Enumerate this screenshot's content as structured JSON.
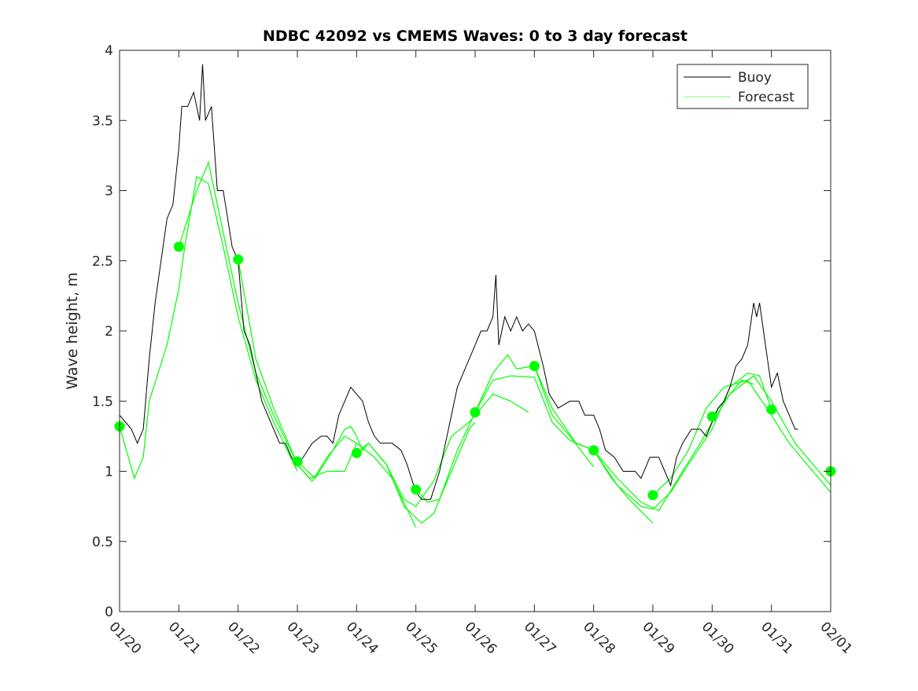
{
  "chart_data": {
    "type": "line",
    "title": "NDBC 42092 vs CMEMS Waves: 0 to 3 day forecast",
    "xlabel": "",
    "ylabel": "Wave height, m",
    "xlim": [
      0,
      12
    ],
    "ylim": [
      0,
      4
    ],
    "x_unit": "days since 01/20",
    "x_tick_labels": [
      "01/20",
      "01/21",
      "01/22",
      "01/23",
      "01/24",
      "01/25",
      "01/26",
      "01/27",
      "01/28",
      "01/29",
      "01/30",
      "01/31",
      "02/01"
    ],
    "y_ticks": [
      0,
      0.5,
      1,
      1.5,
      2,
      2.5,
      3,
      3.5,
      4
    ],
    "y_tick_labels": [
      "0",
      "0.5",
      "1",
      "1.5",
      "2",
      "2.5",
      "3",
      "3.5",
      "4"
    ],
    "grid": false,
    "legend": {
      "placement": "top-right",
      "entries": [
        "Buoy",
        "Forecast"
      ]
    },
    "colors": {
      "buoy": "#000000",
      "forecast": "#00ff00"
    },
    "buoy": [
      [
        0,
        1.4
      ],
      [
        0.1,
        1.35
      ],
      [
        0.2,
        1.3
      ],
      [
        0.3,
        1.2
      ],
      [
        0.4,
        1.3
      ],
      [
        0.5,
        1.8
      ],
      [
        0.6,
        2.2
      ],
      [
        0.7,
        2.5
      ],
      [
        0.8,
        2.8
      ],
      [
        0.9,
        2.9
      ],
      [
        1.0,
        3.3
      ],
      [
        1.05,
        3.6
      ],
      [
        1.15,
        3.6
      ],
      [
        1.25,
        3.7
      ],
      [
        1.35,
        3.5
      ],
      [
        1.4,
        3.9
      ],
      [
        1.45,
        3.5
      ],
      [
        1.55,
        3.6
      ],
      [
        1.65,
        3.0
      ],
      [
        1.75,
        3.0
      ],
      [
        1.9,
        2.6
      ],
      [
        2.0,
        2.5
      ],
      [
        2.1,
        2.0
      ],
      [
        2.2,
        1.9
      ],
      [
        2.3,
        1.7
      ],
      [
        2.4,
        1.5
      ],
      [
        2.5,
        1.4
      ],
      [
        2.6,
        1.3
      ],
      [
        2.7,
        1.2
      ],
      [
        2.8,
        1.2
      ],
      [
        2.9,
        1.1
      ],
      [
        3.0,
        1.05
      ],
      [
        3.1,
        1.1
      ],
      [
        3.25,
        1.2
      ],
      [
        3.4,
        1.25
      ],
      [
        3.5,
        1.25
      ],
      [
        3.6,
        1.2
      ],
      [
        3.7,
        1.4
      ],
      [
        3.8,
        1.5
      ],
      [
        3.9,
        1.6
      ],
      [
        4.0,
        1.55
      ],
      [
        4.1,
        1.5
      ],
      [
        4.2,
        1.35
      ],
      [
        4.3,
        1.25
      ],
      [
        4.4,
        1.2
      ],
      [
        4.6,
        1.2
      ],
      [
        4.75,
        1.15
      ],
      [
        4.85,
        1.05
      ],
      [
        5.0,
        0.85
      ],
      [
        5.1,
        0.8
      ],
      [
        5.25,
        0.8
      ],
      [
        5.4,
        1.0
      ],
      [
        5.5,
        1.2
      ],
      [
        5.6,
        1.4
      ],
      [
        5.7,
        1.6
      ],
      [
        5.8,
        1.7
      ],
      [
        5.9,
        1.8
      ],
      [
        6.0,
        1.9
      ],
      [
        6.1,
        2.0
      ],
      [
        6.2,
        2.0
      ],
      [
        6.3,
        2.1
      ],
      [
        6.35,
        2.4
      ],
      [
        6.4,
        1.9
      ],
      [
        6.5,
        2.1
      ],
      [
        6.6,
        2.0
      ],
      [
        6.7,
        2.1
      ],
      [
        6.8,
        2.0
      ],
      [
        6.9,
        2.05
      ],
      [
        7.0,
        2.0
      ],
      [
        7.15,
        1.75
      ],
      [
        7.25,
        1.55
      ],
      [
        7.4,
        1.45
      ],
      [
        7.6,
        1.5
      ],
      [
        7.75,
        1.5
      ],
      [
        7.85,
        1.4
      ],
      [
        8.0,
        1.4
      ],
      [
        8.1,
        1.3
      ],
      [
        8.2,
        1.15
      ],
      [
        8.35,
        1.1
      ],
      [
        8.5,
        1.0
      ],
      [
        8.7,
        1.0
      ],
      [
        8.8,
        0.95
      ],
      [
        8.95,
        1.1
      ],
      [
        9.1,
        1.1
      ],
      [
        9.2,
        1.0
      ],
      [
        9.3,
        0.9
      ],
      [
        9.4,
        1.1
      ],
      [
        9.5,
        1.2
      ],
      [
        9.65,
        1.3
      ],
      [
        9.8,
        1.3
      ],
      [
        9.9,
        1.25
      ],
      [
        10.0,
        1.35
      ],
      [
        10.1,
        1.45
      ],
      [
        10.2,
        1.5
      ],
      [
        10.3,
        1.6
      ],
      [
        10.4,
        1.75
      ],
      [
        10.5,
        1.8
      ],
      [
        10.6,
        1.9
      ],
      [
        10.7,
        2.2
      ],
      [
        10.75,
        2.1
      ],
      [
        10.8,
        2.2
      ],
      [
        10.9,
        1.9
      ],
      [
        11.0,
        1.6
      ],
      [
        11.1,
        1.7
      ],
      [
        11.2,
        1.5
      ],
      [
        11.3,
        1.4
      ],
      [
        11.4,
        1.3
      ],
      [
        11.45,
        1.3
      ]
    ],
    "forecasts": [
      [
        [
          0,
          1.32
        ],
        [
          0.25,
          0.95
        ],
        [
          0.4,
          1.1
        ],
        [
          0.5,
          1.5
        ],
        [
          0.8,
          1.9
        ],
        [
          1.0,
          2.3
        ],
        [
          1.1,
          2.6
        ],
        [
          1.3,
          3.1
        ],
        [
          1.5,
          3.05
        ],
        [
          1.75,
          2.6
        ],
        [
          2.0,
          2.1
        ],
        [
          2.3,
          1.65
        ],
        [
          2.6,
          1.35
        ],
        [
          3.0,
          1.0
        ]
      ],
      [
        [
          1.0,
          2.6
        ],
        [
          1.3,
          3.0
        ],
        [
          1.5,
          3.2
        ],
        [
          1.7,
          2.8
        ],
        [
          2.0,
          2.2
        ],
        [
          2.3,
          1.7
        ],
        [
          2.6,
          1.4
        ],
        [
          3.0,
          1.05
        ],
        [
          3.2,
          0.95
        ],
        [
          3.5,
          1.0
        ],
        [
          3.8,
          1.0
        ],
        [
          4.0,
          1.2
        ]
      ],
      [
        [
          2.0,
          2.51
        ],
        [
          2.3,
          1.8
        ],
        [
          2.6,
          1.45
        ],
        [
          3.0,
          1.05
        ],
        [
          3.25,
          0.93
        ],
        [
          3.5,
          1.1
        ],
        [
          3.8,
          1.25
        ],
        [
          4.0,
          1.2
        ],
        [
          4.3,
          1.1
        ],
        [
          4.6,
          0.95
        ],
        [
          5.0,
          0.6
        ]
      ],
      [
        [
          3.0,
          1.07
        ],
        [
          3.3,
          0.95
        ],
        [
          3.6,
          1.15
        ],
        [
          3.8,
          1.3
        ],
        [
          3.9,
          1.32
        ],
        [
          4.0,
          1.25
        ],
        [
          4.1,
          1.15
        ],
        [
          4.2,
          1.2
        ],
        [
          4.5,
          1.05
        ],
        [
          4.8,
          0.75
        ],
        [
          5.1,
          0.63
        ],
        [
          5.3,
          0.7
        ],
        [
          5.6,
          1.0
        ],
        [
          5.9,
          1.3
        ],
        [
          6.0,
          1.35
        ]
      ],
      [
        [
          4.0,
          1.13
        ],
        [
          4.2,
          1.2
        ],
        [
          4.5,
          1.05
        ],
        [
          4.8,
          0.8
        ],
        [
          5.0,
          0.75
        ],
        [
          5.3,
          0.93
        ],
        [
          5.6,
          1.25
        ],
        [
          5.9,
          1.35
        ],
        [
          6.3,
          1.55
        ],
        [
          6.6,
          1.5
        ],
        [
          6.9,
          1.42
        ]
      ],
      [
        [
          5.0,
          0.87
        ],
        [
          5.2,
          0.78
        ],
        [
          5.4,
          0.8
        ],
        [
          5.7,
          1.15
        ],
        [
          6.0,
          1.42
        ],
        [
          6.3,
          1.7
        ],
        [
          6.55,
          1.83
        ],
        [
          6.7,
          1.73
        ],
        [
          7.0,
          1.75
        ],
        [
          7.3,
          1.4
        ],
        [
          7.6,
          1.25
        ],
        [
          8.0,
          1.03
        ]
      ],
      [
        [
          6.0,
          1.42
        ],
        [
          6.3,
          1.65
        ],
        [
          6.6,
          1.68
        ],
        [
          7.0,
          1.67
        ],
        [
          7.3,
          1.35
        ],
        [
          7.6,
          1.22
        ],
        [
          8.0,
          1.15
        ],
        [
          8.3,
          0.95
        ],
        [
          8.6,
          0.8
        ],
        [
          9.0,
          0.63
        ]
      ],
      [
        [
          7.0,
          1.75
        ],
        [
          7.3,
          1.45
        ],
        [
          7.7,
          1.2
        ],
        [
          8.0,
          1.15
        ],
        [
          8.4,
          0.95
        ],
        [
          8.8,
          0.78
        ],
        [
          9.1,
          0.72
        ],
        [
          9.5,
          1.0
        ],
        [
          9.8,
          1.2
        ],
        [
          10.0,
          1.35
        ],
        [
          10.3,
          1.55
        ],
        [
          10.5,
          1.65
        ],
        [
          10.7,
          1.62
        ]
      ],
      [
        [
          8.0,
          1.15
        ],
        [
          8.4,
          0.9
        ],
        [
          8.8,
          0.75
        ],
        [
          9.0,
          0.73
        ],
        [
          9.3,
          0.85
        ],
        [
          9.6,
          1.05
        ],
        [
          10.0,
          1.3
        ],
        [
          10.3,
          1.6
        ],
        [
          10.6,
          1.7
        ],
        [
          10.8,
          1.68
        ],
        [
          11.0,
          1.44
        ]
      ],
      [
        [
          9.0,
          0.83
        ],
        [
          9.3,
          0.95
        ],
        [
          9.6,
          1.15
        ],
        [
          9.9,
          1.45
        ],
        [
          10.2,
          1.6
        ],
        [
          10.6,
          1.65
        ],
        [
          11.0,
          1.4
        ],
        [
          11.3,
          1.2
        ],
        [
          11.6,
          1.05
        ],
        [
          12.0,
          0.85
        ]
      ],
      [
        [
          10.0,
          1.39
        ],
        [
          10.3,
          1.55
        ],
        [
          10.7,
          1.68
        ],
        [
          11.0,
          1.5
        ],
        [
          11.4,
          1.2
        ],
        [
          11.8,
          1.0
        ],
        [
          12.0,
          0.9
        ]
      ]
    ],
    "forecast_initial_points": [
      [
        0,
        1.32
      ],
      [
        1,
        2.6
      ],
      [
        2,
        2.51
      ],
      [
        3,
        1.07
      ],
      [
        4,
        1.13
      ],
      [
        5,
        0.87
      ],
      [
        6,
        1.42
      ],
      [
        7,
        1.75
      ],
      [
        8,
        1.15
      ],
      [
        9,
        0.83
      ],
      [
        10,
        1.39
      ],
      [
        11,
        1.44
      ],
      [
        12,
        1.0
      ]
    ]
  }
}
